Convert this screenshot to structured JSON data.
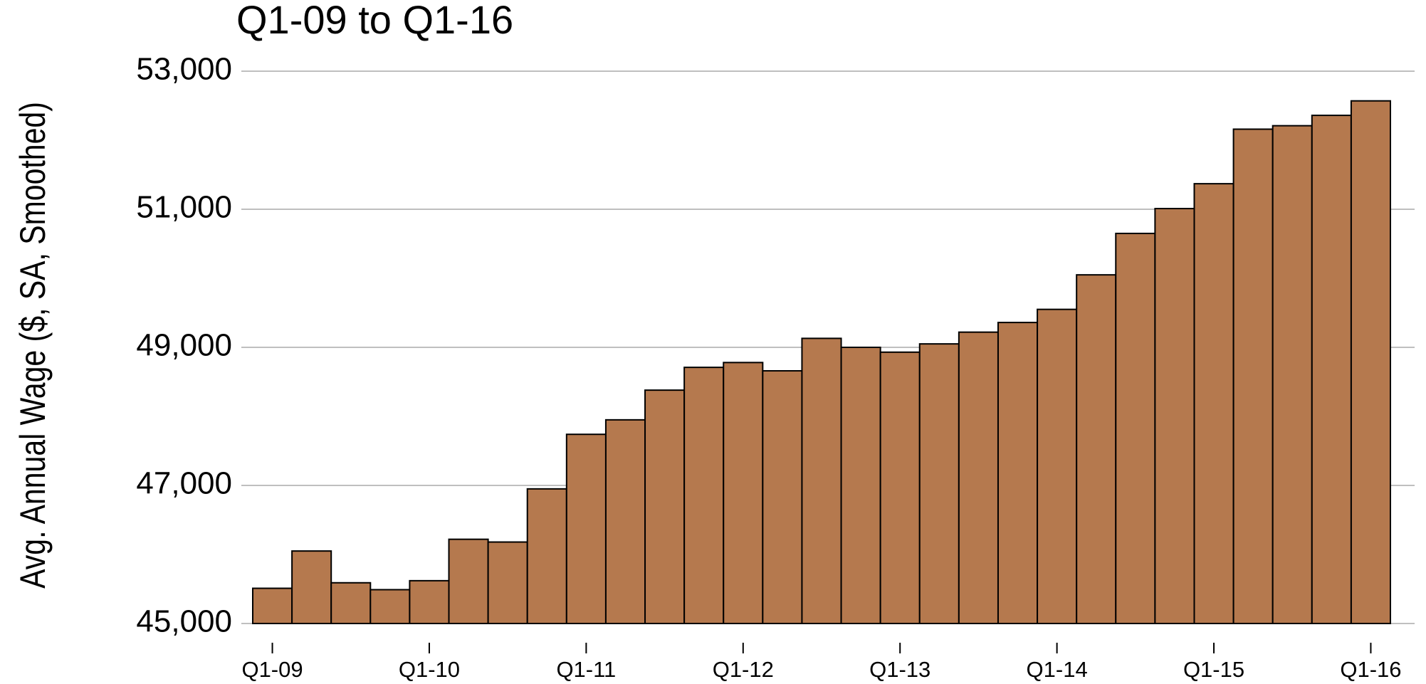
{
  "chart_data": {
    "type": "bar",
    "title": "Q1-09 to Q1-16",
    "y_label": "Avg. Annual Wage ($, SA, Smoothed)",
    "categories": [
      "Q1-09",
      null,
      null,
      null,
      "Q1-10",
      null,
      null,
      null,
      "Q1-11",
      null,
      null,
      null,
      "Q1-12",
      null,
      null,
      null,
      "Q1-13",
      null,
      null,
      null,
      "Q1-14",
      null,
      null,
      null,
      "Q1-15",
      null,
      null,
      null,
      "Q1-16"
    ],
    "values": [
      45510,
      46050,
      45590,
      45490,
      45620,
      46220,
      46180,
      46950,
      47740,
      47950,
      48380,
      48710,
      48780,
      48660,
      49130,
      49000,
      48930,
      49050,
      49220,
      49360,
      49550,
      50050,
      50650,
      51010,
      51370,
      52160,
      52210,
      52360,
      52570
    ],
    "color": "#b5794e",
    "ylim": [
      45000,
      53000
    ],
    "yticks": [
      {
        "value": 45000,
        "label": "45,000"
      },
      {
        "value": 47000,
        "label": "47,000"
      },
      {
        "value": 49000,
        "label": "49,000"
      },
      {
        "value": 51000,
        "label": "51,000"
      },
      {
        "value": 53000,
        "label": "53,000"
      }
    ],
    "grid": true
  }
}
